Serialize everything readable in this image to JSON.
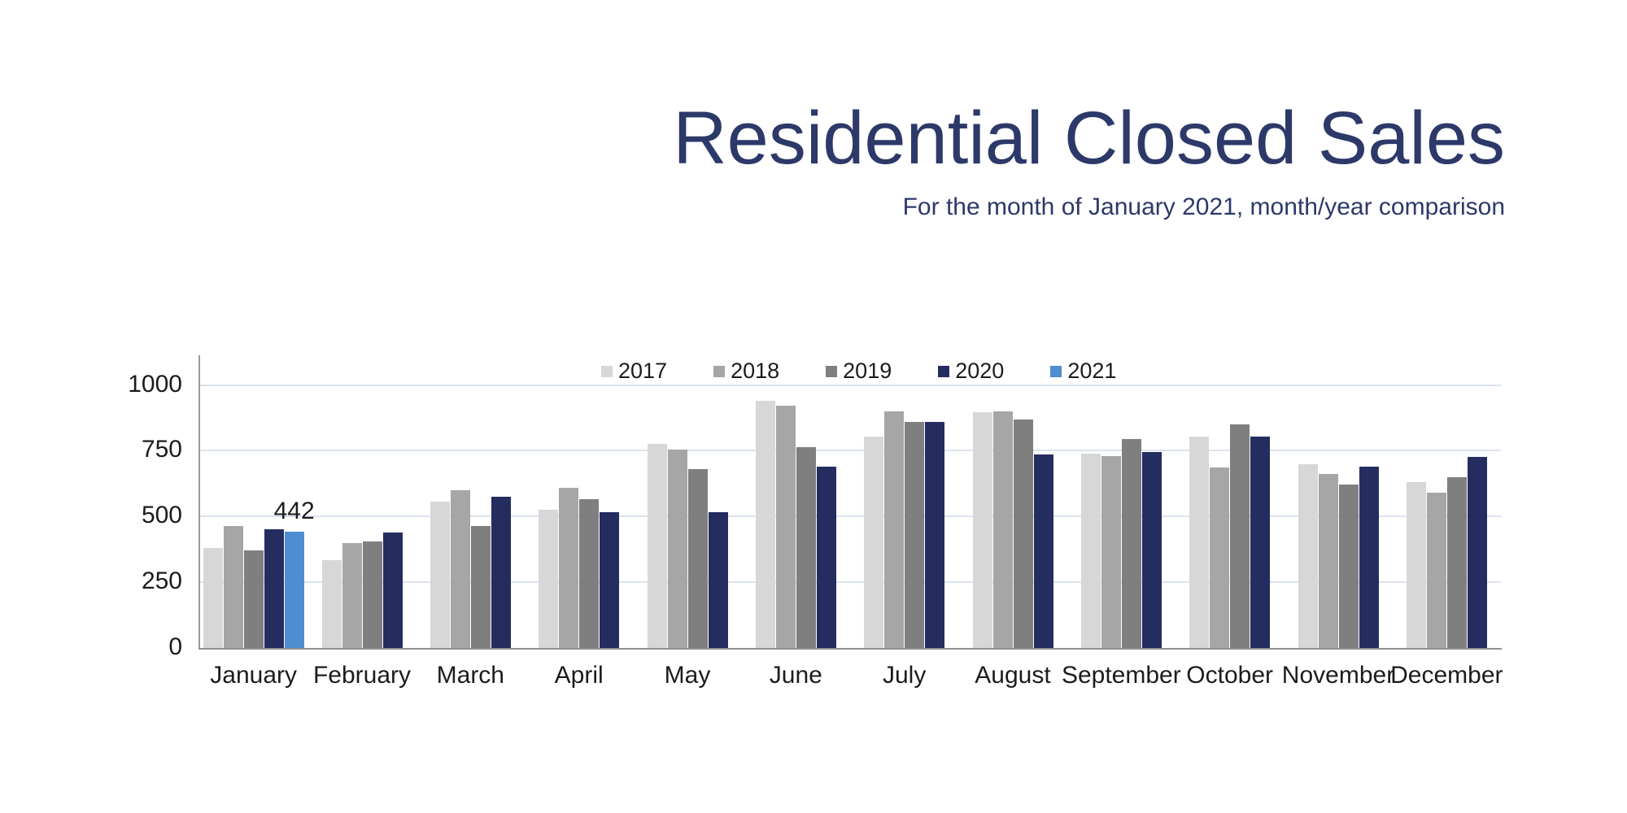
{
  "page": {
    "title": "Residential Closed Sales",
    "subtitle": "For the month of January 2021, month/year comparison"
  },
  "colors": {
    "title_text": "#2c3969",
    "subtitle_text": "#2c3969",
    "label_text": "#1c1c1c",
    "gridline": "#dbe3ee",
    "axis_line_x": "#8f8f8f",
    "axis_line_y": "#9a9a9a",
    "series_2017": "#d7d7d7",
    "series_2018": "#a6a6a6",
    "series_2019": "#7f7f7f",
    "series_2020": "#252c60",
    "series_2021": "#4c8ed0"
  },
  "chart_data": {
    "type": "bar",
    "title": "Residential Closed Sales",
    "subtitle": "For the month of January 2021, month/year comparison",
    "categories": [
      "January",
      "February",
      "March",
      "April",
      "May",
      "June",
      "July",
      "August",
      "September",
      "October",
      "November",
      "December"
    ],
    "series": [
      {
        "name": "2017",
        "color": "#d7d7d7",
        "values": [
          380,
          335,
          555,
          525,
          775,
          940,
          805,
          895,
          740,
          805,
          700,
          630
        ]
      },
      {
        "name": "2018",
        "color": "#a6a6a6",
        "values": [
          465,
          400,
          600,
          610,
          755,
          920,
          900,
          900,
          730,
          685,
          660,
          590
        ]
      },
      {
        "name": "2019",
        "color": "#7f7f7f",
        "values": [
          370,
          405,
          465,
          565,
          680,
          765,
          860,
          870,
          795,
          850,
          620,
          650
        ]
      },
      {
        "name": "2020",
        "color": "#252c60",
        "values": [
          450,
          440,
          575,
          515,
          515,
          690,
          858,
          735,
          745,
          805,
          690,
          725
        ]
      },
      {
        "name": "2021",
        "color": "#4c8ed0",
        "values": [
          442,
          null,
          null,
          null,
          null,
          null,
          null,
          null,
          null,
          null,
          null,
          null
        ]
      }
    ],
    "ylim": [
      0,
      1000
    ],
    "yticks": [
      0,
      250,
      500,
      750,
      1000
    ],
    "grid": true,
    "legend_position": "top-center",
    "annotations": [
      {
        "series": "2021",
        "category": "January",
        "text": "442"
      }
    ]
  }
}
